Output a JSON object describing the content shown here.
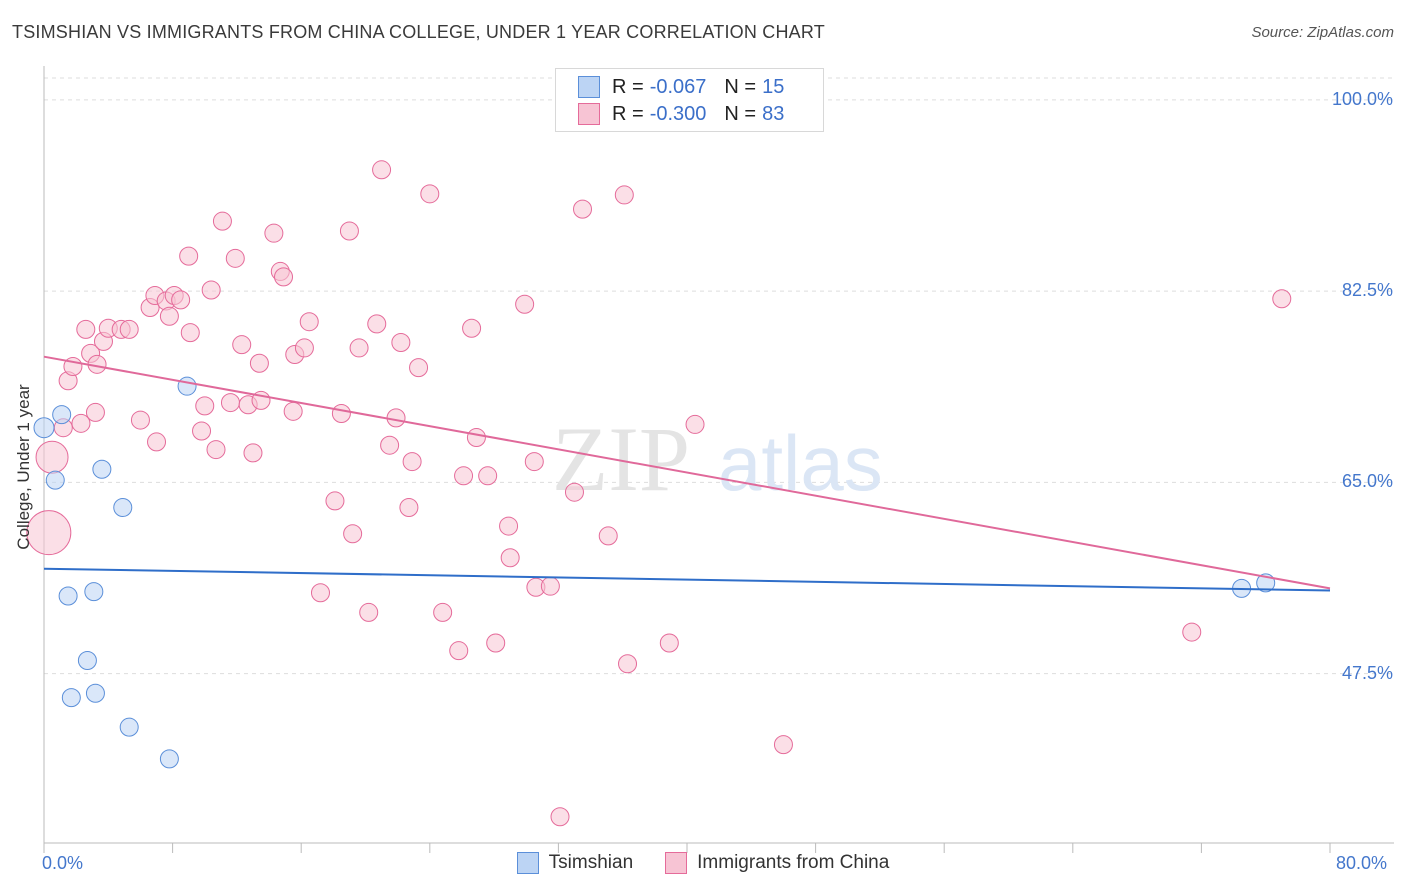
{
  "header": {
    "title": "TSIMSHIAN VS IMMIGRANTS FROM CHINA COLLEGE, UNDER 1 YEAR CORRELATION CHART",
    "source": "Source: ZipAtlas.com"
  },
  "legend": {
    "rows": [
      {
        "r_label": "R =",
        "r_value": "-0.067",
        "n_label": "N =",
        "n_value": "15"
      },
      {
        "r_label": "R =",
        "r_value": "-0.300",
        "n_label": "N =",
        "n_value": "83"
      }
    ]
  },
  "watermark": {
    "zip": "ZIP",
    "atlas": "atlas"
  },
  "colors": {
    "blue": "#5b8fd9",
    "blue_fill": "#bcd4f4",
    "pink": "#e56b9a",
    "pink_fill": "#f7c4d4",
    "blue_line": "#2f6ec9",
    "pink_line": "#e0699a",
    "tick_label": "#4477cc"
  },
  "chart_data": {
    "type": "scatter",
    "title": "TSIMSHIAN VS IMMIGRANTS FROM CHINA COLLEGE, UNDER 1 YEAR CORRELATION CHART",
    "xlabel": "",
    "ylabel": "College, Under 1 year",
    "xlim": [
      0,
      80
    ],
    "ylim": [
      32,
      102
    ],
    "x_tick_labels": [
      "0.0%",
      "80.0%"
    ],
    "y_ticks": [
      47.5,
      65.0,
      82.5,
      100.0
    ],
    "y_tick_labels": [
      "47.5%",
      "65.0%",
      "82.5%",
      "100.0%"
    ],
    "series": [
      {
        "name": "Tsimshian",
        "r": -0.067,
        "n": 15,
        "trend": [
          [
            0,
            57.1
          ],
          [
            80,
            55.1
          ]
        ],
        "points": [
          [
            0.0,
            70.0,
            10
          ],
          [
            1.1,
            71.2,
            9
          ],
          [
            0.7,
            65.2,
            9
          ],
          [
            3.6,
            66.2,
            9
          ],
          [
            4.9,
            62.7,
            9
          ],
          [
            8.9,
            73.8,
            9
          ],
          [
            1.5,
            54.6,
            9
          ],
          [
            3.1,
            55.0,
            9
          ],
          [
            2.7,
            48.7,
            9
          ],
          [
            1.7,
            45.3,
            9
          ],
          [
            3.2,
            45.7,
            9
          ],
          [
            5.3,
            42.6,
            9
          ],
          [
            7.8,
            39.7,
            9
          ],
          [
            74.5,
            55.3,
            9
          ],
          [
            76.0,
            55.8,
            9
          ]
        ]
      },
      {
        "name": "Immigrants from China",
        "r": -0.3,
        "n": 83,
        "trend": [
          [
            0,
            76.5
          ],
          [
            80,
            55.3
          ]
        ],
        "points": [
          [
            0.5,
            67.3,
            16
          ],
          [
            0.3,
            60.4,
            22
          ],
          [
            1.2,
            70.0,
            9
          ],
          [
            1.5,
            74.3,
            9
          ],
          [
            1.8,
            75.6,
            9
          ],
          [
            2.6,
            79.0,
            9
          ],
          [
            2.9,
            76.8,
            9
          ],
          [
            3.3,
            75.8,
            9
          ],
          [
            3.7,
            77.9,
            9
          ],
          [
            4.0,
            79.1,
            9
          ],
          [
            4.8,
            79.0,
            9
          ],
          [
            5.3,
            79.0,
            9
          ],
          [
            6.0,
            70.7,
            9
          ],
          [
            6.6,
            81.0,
            9
          ],
          [
            6.9,
            82.1,
            9
          ],
          [
            7.0,
            68.7,
            9
          ],
          [
            7.6,
            81.6,
            9
          ],
          [
            7.8,
            80.2,
            9
          ],
          [
            8.1,
            82.1,
            9
          ],
          [
            8.5,
            81.7,
            9
          ],
          [
            9.0,
            85.7,
            9
          ],
          [
            9.1,
            78.7,
            9
          ],
          [
            9.8,
            69.7,
            9
          ],
          [
            10.0,
            72.0,
            9
          ],
          [
            10.4,
            82.6,
            9
          ],
          [
            10.7,
            68.0,
            9
          ],
          [
            11.1,
            88.9,
            9
          ],
          [
            11.6,
            72.3,
            9
          ],
          [
            11.9,
            85.5,
            9
          ],
          [
            12.3,
            77.6,
            9
          ],
          [
            12.7,
            72.1,
            9
          ],
          [
            13.0,
            67.7,
            9
          ],
          [
            13.4,
            75.9,
            9
          ],
          [
            14.3,
            87.8,
            9
          ],
          [
            14.7,
            84.3,
            9
          ],
          [
            14.9,
            83.8,
            9
          ],
          [
            15.5,
            71.5,
            9
          ],
          [
            15.6,
            76.7,
            9
          ],
          [
            16.2,
            77.3,
            9
          ],
          [
            16.5,
            79.7,
            9
          ],
          [
            17.2,
            54.9,
            9
          ],
          [
            18.1,
            63.3,
            9
          ],
          [
            18.5,
            71.3,
            9
          ],
          [
            19.0,
            88.0,
            9
          ],
          [
            19.2,
            60.3,
            9
          ],
          [
            19.6,
            77.3,
            9
          ],
          [
            20.2,
            53.1,
            9
          ],
          [
            20.7,
            79.5,
            9
          ],
          [
            21.0,
            93.6,
            9
          ],
          [
            21.9,
            70.9,
            9
          ],
          [
            22.2,
            77.8,
            9
          ],
          [
            22.7,
            62.7,
            9
          ],
          [
            22.9,
            66.9,
            9
          ],
          [
            23.3,
            75.5,
            9
          ],
          [
            24.0,
            91.4,
            9
          ],
          [
            24.8,
            53.1,
            9
          ],
          [
            25.8,
            49.6,
            9
          ],
          [
            26.1,
            65.6,
            9
          ],
          [
            26.6,
            79.1,
            9
          ],
          [
            26.9,
            69.1,
            9
          ],
          [
            27.6,
            65.6,
            9
          ],
          [
            28.1,
            50.3,
            9
          ],
          [
            28.9,
            61.0,
            9
          ],
          [
            29.0,
            58.1,
            9
          ],
          [
            29.9,
            81.3,
            9
          ],
          [
            30.5,
            66.9,
            9
          ],
          [
            30.6,
            55.4,
            9
          ],
          [
            31.5,
            55.5,
            9
          ],
          [
            32.1,
            34.4,
            9
          ],
          [
            33.0,
            64.1,
            9
          ],
          [
            33.5,
            90.0,
            9
          ],
          [
            35.1,
            60.1,
            9
          ],
          [
            36.1,
            91.3,
            9
          ],
          [
            36.3,
            48.4,
            9
          ],
          [
            38.9,
            50.3,
            9
          ],
          [
            40.5,
            70.3,
            9
          ],
          [
            46.0,
            41.0,
            9
          ],
          [
            71.4,
            51.3,
            9
          ],
          [
            77.0,
            81.8,
            9
          ],
          [
            2.3,
            70.4,
            9
          ],
          [
            13.5,
            72.5,
            9
          ],
          [
            3.2,
            71.4,
            9
          ],
          [
            21.5,
            68.4,
            9
          ]
        ]
      }
    ]
  },
  "bottom_legend": {
    "items": [
      "Tsimshian",
      "Immigrants from China"
    ]
  }
}
